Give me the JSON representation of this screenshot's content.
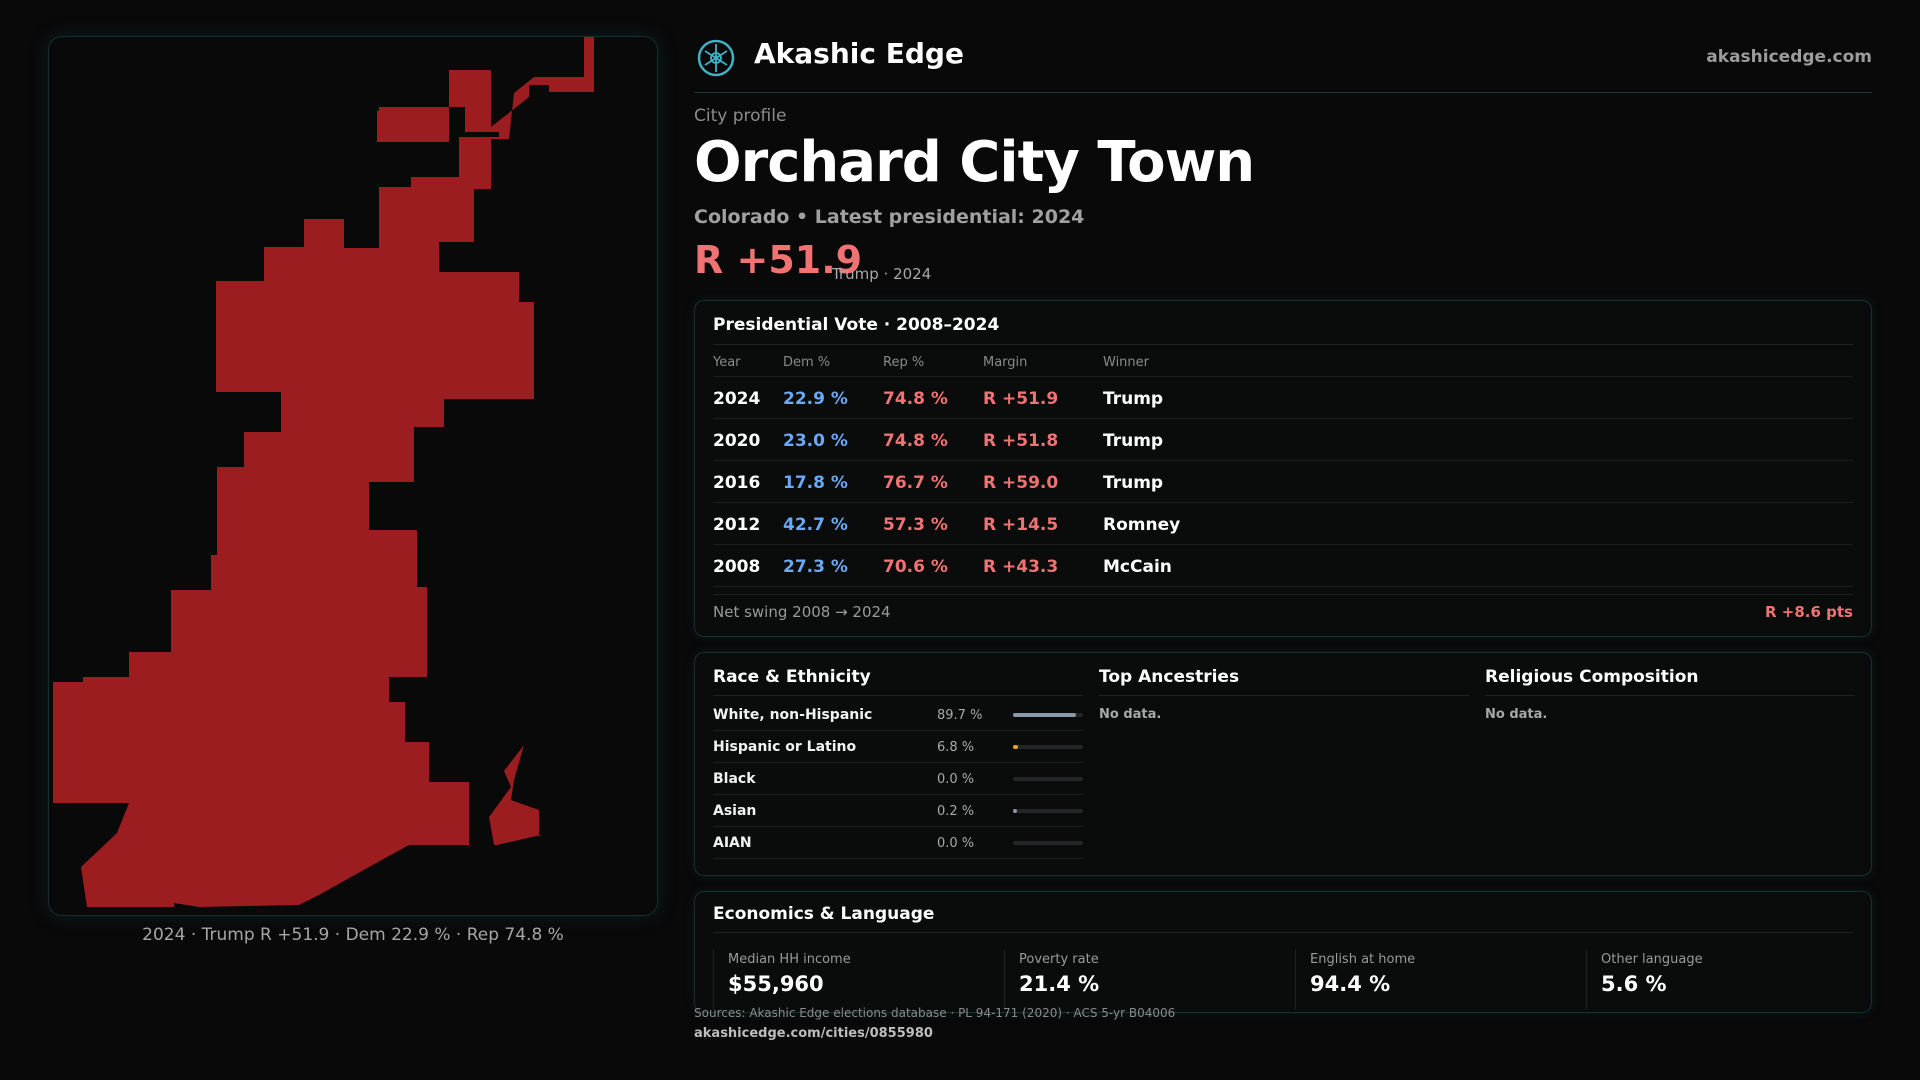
{
  "brand": {
    "name": "Akashic Edge",
    "site": "akashicedge.com"
  },
  "page": {
    "kicker": "City profile",
    "title": "Orchard City Town",
    "subtitle": "Colorado • Latest presidential: 2024",
    "headline_margin": "R +51.9",
    "headline_note": "Trump · 2024"
  },
  "map": {
    "caption": "2024 · Trump R +51.9 · Dem 22.9 % · Rep 74.8 %",
    "fill_color": "#9b1d20"
  },
  "vote": {
    "title": "Presidential Vote · 2008–2024",
    "columns": [
      "Year",
      "Dem %",
      "Rep %",
      "Margin",
      "Winner"
    ],
    "rows": [
      {
        "year": "2024",
        "dem": "22.9 %",
        "rep": "74.8 %",
        "margin": "R +51.9",
        "winner": "Trump"
      },
      {
        "year": "2020",
        "dem": "23.0 %",
        "rep": "74.8 %",
        "margin": "R +51.8",
        "winner": "Trump"
      },
      {
        "year": "2016",
        "dem": "17.8 %",
        "rep": "76.7 %",
        "margin": "R +59.0",
        "winner": "Trump"
      },
      {
        "year": "2012",
        "dem": "42.7 %",
        "rep": "57.3 %",
        "margin": "R +14.5",
        "winner": "Romney"
      },
      {
        "year": "2008",
        "dem": "27.3 %",
        "rep": "70.6 %",
        "margin": "R +43.3",
        "winner": "McCain"
      }
    ],
    "swing_label": "Net swing 2008 → 2024",
    "swing_value": "R +8.6 pts"
  },
  "demographics": {
    "race_title": "Race & Ethnicity",
    "race": [
      {
        "label": "White, non-Hispanic",
        "value": "89.7 %",
        "pct": 89.7,
        "color": "#8b98ab"
      },
      {
        "label": "Hispanic or Latino",
        "value": "6.8 %",
        "pct": 6.8,
        "color": "#e0a526"
      },
      {
        "label": "Black",
        "value": "0.0 %",
        "pct": 0.0,
        "color": "#8b98ab"
      },
      {
        "label": "Asian",
        "value": "0.2 %",
        "pct": 0.2,
        "color": "#8b98ab"
      },
      {
        "label": "AIAN",
        "value": "0.0 %",
        "pct": 0.0,
        "color": "#8b98ab"
      }
    ],
    "ancestry_title": "Top Ancestries",
    "ancestry_text": "No data.",
    "religion_title": "Religious Composition",
    "religion_text": "No data."
  },
  "economics": {
    "title": "Economics & Language",
    "stats": [
      {
        "label": "Median HH income",
        "value": "$55,960"
      },
      {
        "label": "Poverty rate",
        "value": "21.4 %"
      },
      {
        "label": "English at home",
        "value": "94.4 %"
      },
      {
        "label": "Other language",
        "value": "5.6 %"
      }
    ]
  },
  "footer": {
    "sources": "Sources: Akashic Edge elections database · PL 94-171 (2020) · ACS 5-yr B04006",
    "url": "akashicedge.com/cities/0855980"
  }
}
